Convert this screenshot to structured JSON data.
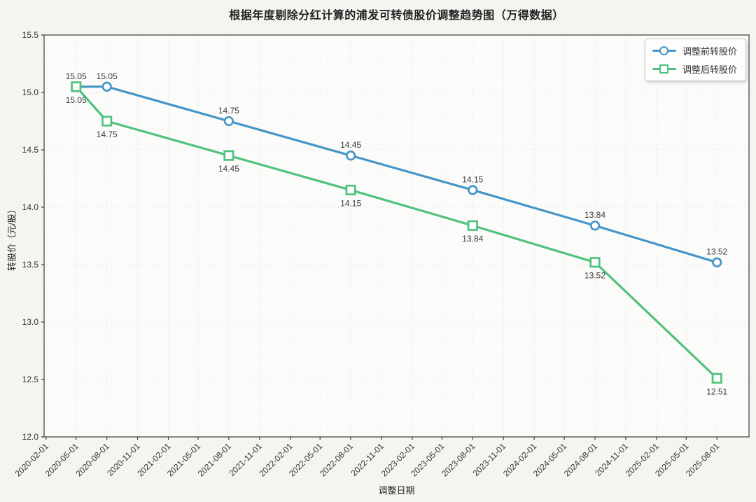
{
  "figure": {
    "background": "#f5f4f1",
    "plot_background": "#fbfbf9",
    "spine_color": "#3b3b3b",
    "grid_color": "#dcdcda",
    "tick_label_color": "#333333",
    "point_label_color": "#3a3a3a"
  },
  "chart_data": {
    "type": "line",
    "title": "根据年度剔除分红计算的浦发可转债股价调整趋势图（万得数据）",
    "xlabel": "调整日期",
    "ylabel": "转股价（元/股）",
    "ylim": [
      12.0,
      15.5
    ],
    "y_ticks": [
      12.0,
      12.5,
      13.0,
      13.5,
      14.0,
      14.5,
      15.0,
      15.5
    ],
    "x_tick_labels": [
      "2020-02-01",
      "2020-05-01",
      "2020-08-01",
      "2020-11-01",
      "2021-02-01",
      "2021-05-01",
      "2021-08-01",
      "2021-11-01",
      "2022-02-01",
      "2022-05-01",
      "2022-08-01",
      "2022-11-01",
      "2023-02-01",
      "2023-05-01",
      "2023-08-01",
      "2023-11-01",
      "2024-02-01",
      "2024-05-01",
      "2024-08-01",
      "2024-11-01",
      "2025-02-01",
      "2025-05-01",
      "2025-08-01"
    ],
    "grid": true,
    "x_margin_fraction": 0.05,
    "legend_position": "upper right",
    "series": [
      {
        "name": "调整前转股价",
        "color": "#4596c8",
        "marker": "circle",
        "label_placement": "above",
        "x": [
          "2020-05-01",
          "2020-08-01",
          "2021-08-01",
          "2022-08-01",
          "2023-08-01",
          "2024-08-01",
          "2025-08-01"
        ],
        "y": [
          15.05,
          15.05,
          14.75,
          14.45,
          14.15,
          13.84,
          13.52
        ]
      },
      {
        "name": "调整后转股价",
        "color": "#4fc27d",
        "marker": "square",
        "label_placement": "below",
        "x": [
          "2020-05-01",
          "2020-08-01",
          "2021-08-01",
          "2022-08-01",
          "2023-08-01",
          "2024-08-01",
          "2025-08-01"
        ],
        "y": [
          15.05,
          14.75,
          14.45,
          14.15,
          13.84,
          13.52,
          12.51
        ]
      }
    ]
  }
}
